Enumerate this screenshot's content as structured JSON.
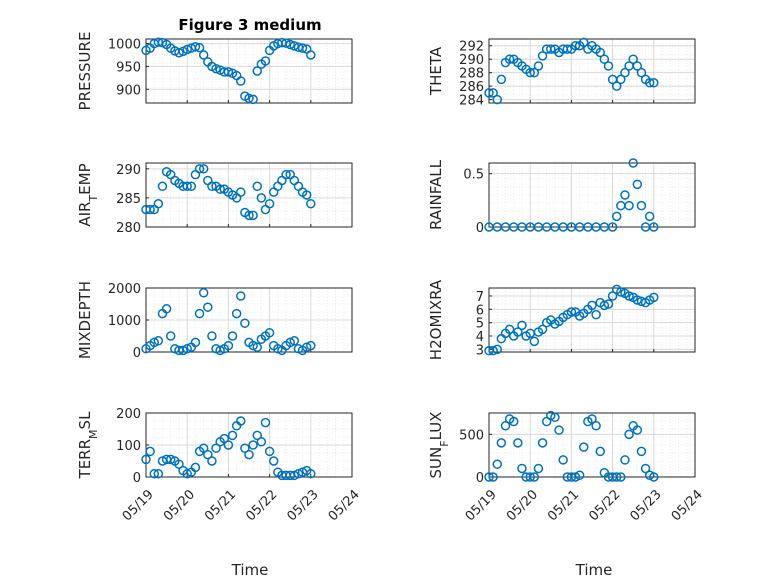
{
  "figure": {
    "title": "Figure 3 medium"
  },
  "colors": {
    "marker": "#0072BD",
    "axes": "#262626"
  },
  "chart_data": [
    {
      "type": "scatter",
      "ylabel": "PRESSURE",
      "title": "Figure 3 medium",
      "ylim": [
        870,
        1010
      ],
      "yticks": [
        900,
        950,
        1000
      ],
      "xlim": [
        0,
        5
      ],
      "xticks": [
        0,
        1,
        2,
        3,
        4,
        5
      ],
      "xticklabels": [
        "05/19",
        "05/20",
        "05/21",
        "05/22",
        "05/23",
        "05/24"
      ],
      "series": [
        {
          "x": [
            0,
            0.1,
            0.2,
            0.3,
            0.4,
            0.5,
            0.6,
            0.7,
            0.8,
            0.9,
            1.0,
            1.1,
            1.2,
            1.3,
            1.4,
            1.5,
            1.6,
            1.7,
            1.8,
            1.9,
            2.0,
            2.1,
            2.2,
            2.3,
            2.4,
            2.5,
            2.6,
            2.7,
            2.8,
            2.9,
            3.0,
            3.1,
            3.2,
            3.3,
            3.4,
            3.5,
            3.6,
            3.7,
            3.8,
            3.9,
            4.0
          ],
          "y": [
            985,
            990,
            1000,
            1003,
            1002,
            998,
            990,
            984,
            980,
            983,
            987,
            990,
            993,
            991,
            975,
            960,
            950,
            945,
            942,
            938,
            938,
            935,
            930,
            918,
            885,
            880,
            878,
            940,
            955,
            962,
            985,
            995,
            1000,
            1002,
            1001,
            998,
            995,
            992,
            990,
            988,
            975
          ]
        }
      ]
    },
    {
      "type": "scatter",
      "ylabel": "THETA",
      "ylim": [
        283.5,
        293
      ],
      "yticks": [
        284,
        286,
        288,
        290,
        292
      ],
      "xlim": [
        0,
        5
      ],
      "xticks": [
        0,
        1,
        2,
        3,
        4,
        5
      ],
      "xticklabels": [
        "05/19",
        "05/20",
        "05/21",
        "05/22",
        "05/23",
        "05/24"
      ],
      "series": [
        {
          "x": [
            0,
            0.1,
            0.2,
            0.3,
            0.4,
            0.5,
            0.6,
            0.7,
            0.8,
            0.9,
            1.0,
            1.1,
            1.2,
            1.3,
            1.4,
            1.5,
            1.6,
            1.7,
            1.8,
            1.9,
            2.0,
            2.1,
            2.2,
            2.3,
            2.4,
            2.5,
            2.6,
            2.7,
            2.8,
            2.9,
            3.0,
            3.1,
            3.2,
            3.3,
            3.4,
            3.5,
            3.6,
            3.7,
            3.8,
            3.9,
            4.0
          ],
          "y": [
            285,
            285,
            284,
            287,
            289.5,
            290,
            290,
            289.5,
            289,
            288.5,
            288,
            288,
            289,
            290.5,
            291.5,
            291.5,
            291.5,
            291,
            291.5,
            291.5,
            291.5,
            292,
            292,
            292.5,
            291.5,
            292,
            291.5,
            291,
            290,
            289,
            287,
            286,
            287,
            288,
            289,
            290,
            289,
            288,
            287,
            286.5,
            286.5
          ]
        }
      ]
    },
    {
      "type": "scatter",
      "ylabel": "AIR_TEMP",
      "ylim": [
        280,
        291
      ],
      "yticks": [
        280,
        285,
        290
      ],
      "xlim": [
        0,
        5
      ],
      "xticks": [
        0,
        1,
        2,
        3,
        4,
        5
      ],
      "xticklabels": [
        "05/19",
        "05/20",
        "05/21",
        "05/22",
        "05/23",
        "05/24"
      ],
      "series": [
        {
          "x": [
            0,
            0.1,
            0.2,
            0.3,
            0.4,
            0.5,
            0.6,
            0.7,
            0.8,
            0.9,
            1.0,
            1.1,
            1.2,
            1.3,
            1.4,
            1.5,
            1.6,
            1.7,
            1.8,
            1.9,
            2.0,
            2.1,
            2.2,
            2.3,
            2.4,
            2.5,
            2.6,
            2.7,
            2.8,
            2.9,
            3.0,
            3.1,
            3.2,
            3.3,
            3.4,
            3.5,
            3.6,
            3.7,
            3.8,
            3.9,
            4.0
          ],
          "y": [
            283,
            283,
            283,
            284,
            287,
            289.5,
            289,
            288,
            287.5,
            287,
            287,
            287,
            289,
            290,
            290,
            288,
            287,
            287,
            286.5,
            286.5,
            286,
            285.5,
            285,
            286,
            282.5,
            282,
            282,
            287,
            285,
            283,
            284,
            286,
            287,
            288,
            289,
            289,
            288,
            287,
            286,
            285.5,
            284
          ]
        }
      ]
    },
    {
      "type": "scatter",
      "ylabel": "RAINFALL",
      "ylim": [
        0,
        0.6
      ],
      "yticks": [
        0,
        0.5
      ],
      "xlim": [
        0,
        5
      ],
      "xticks": [
        0,
        1,
        2,
        3,
        4,
        5
      ],
      "xticklabels": [
        "05/19",
        "05/20",
        "05/21",
        "05/22",
        "05/23",
        "05/24"
      ],
      "series": [
        {
          "x": [
            0,
            0.2,
            0.4,
            0.6,
            0.8,
            1.0,
            1.2,
            1.4,
            1.6,
            1.8,
            2.0,
            2.2,
            2.4,
            2.6,
            2.8,
            3.0,
            3.1,
            3.2,
            3.3,
            3.4,
            3.5,
            3.6,
            3.7,
            3.8,
            3.9,
            4.0
          ],
          "y": [
            0,
            0,
            0,
            0,
            0,
            0,
            0,
            0,
            0,
            0,
            0,
            0,
            0,
            0,
            0,
            0,
            0.1,
            0.2,
            0.3,
            0.2,
            0.6,
            0.4,
            0.2,
            0,
            0.1,
            0
          ]
        }
      ]
    },
    {
      "type": "scatter",
      "ylabel": "MIXDEPTH",
      "ylim": [
        0,
        2000
      ],
      "yticks": [
        0,
        1000,
        2000
      ],
      "xlim": [
        0,
        5
      ],
      "xticks": [
        0,
        1,
        2,
        3,
        4,
        5
      ],
      "xticklabels": [
        "05/19",
        "05/20",
        "05/21",
        "05/22",
        "05/23",
        "05/24"
      ],
      "series": [
        {
          "x": [
            0,
            0.1,
            0.2,
            0.3,
            0.4,
            0.5,
            0.6,
            0.7,
            0.8,
            0.9,
            1.0,
            1.1,
            1.2,
            1.3,
            1.4,
            1.5,
            1.6,
            1.7,
            1.8,
            1.9,
            2.0,
            2.1,
            2.2,
            2.3,
            2.4,
            2.5,
            2.6,
            2.7,
            2.8,
            2.9,
            3.0,
            3.1,
            3.2,
            3.3,
            3.4,
            3.5,
            3.6,
            3.7,
            3.8,
            3.9,
            4.0
          ],
          "y": [
            100,
            200,
            300,
            350,
            1200,
            1350,
            500,
            100,
            50,
            50,
            100,
            150,
            300,
            1200,
            1850,
            1400,
            500,
            100,
            50,
            100,
            200,
            500,
            1200,
            1750,
            900,
            300,
            200,
            150,
            400,
            500,
            600,
            200,
            100,
            50,
            200,
            300,
            350,
            100,
            50,
            150,
            200
          ]
        }
      ]
    },
    {
      "type": "scatter",
      "ylabel": "H2OMIXRA",
      "ylim": [
        2.8,
        7.6
      ],
      "yticks": [
        3,
        4,
        5,
        6,
        7
      ],
      "xlim": [
        0,
        5
      ],
      "xticks": [
        0,
        1,
        2,
        3,
        4,
        5
      ],
      "xticklabels": [
        "05/19",
        "05/20",
        "05/21",
        "05/22",
        "05/23",
        "05/24"
      ],
      "series": [
        {
          "x": [
            0,
            0.1,
            0.2,
            0.3,
            0.4,
            0.5,
            0.6,
            0.7,
            0.8,
            0.9,
            1.0,
            1.1,
            1.2,
            1.3,
            1.4,
            1.5,
            1.6,
            1.7,
            1.8,
            1.9,
            2.0,
            2.1,
            2.2,
            2.3,
            2.4,
            2.5,
            2.6,
            2.7,
            2.8,
            2.9,
            3.0,
            3.1,
            3.2,
            3.3,
            3.4,
            3.5,
            3.6,
            3.7,
            3.8,
            3.9,
            4.0
          ],
          "y": [
            2.9,
            2.9,
            3.0,
            3.8,
            4.2,
            4.5,
            4.0,
            4.3,
            4.8,
            4.0,
            4.2,
            3.6,
            4.3,
            4.5,
            5.0,
            5.2,
            4.9,
            5.1,
            5.4,
            5.6,
            5.8,
            5.8,
            5.5,
            5.7,
            6.0,
            6.3,
            5.6,
            6.5,
            6.3,
            6.4,
            7.0,
            7.5,
            7.3,
            7.2,
            7.0,
            6.9,
            6.7,
            6.6,
            6.5,
            6.7,
            6.9
          ]
        }
      ]
    },
    {
      "type": "scatter",
      "ylabel": "TERR_MSL",
      "ylim": [
        0,
        200
      ],
      "yticks": [
        0,
        100,
        200
      ],
      "xlim": [
        0,
        5
      ],
      "xticks": [
        0,
        1,
        2,
        3,
        4,
        5
      ],
      "xticklabels": [
        "05/19",
        "05/20",
        "05/21",
        "05/22",
        "05/23",
        "05/24"
      ],
      "series": [
        {
          "x": [
            0,
            0.1,
            0.2,
            0.3,
            0.4,
            0.5,
            0.6,
            0.7,
            0.8,
            0.9,
            1.0,
            1.1,
            1.2,
            1.3,
            1.4,
            1.5,
            1.6,
            1.7,
            1.8,
            1.9,
            2.0,
            2.1,
            2.2,
            2.3,
            2.4,
            2.5,
            2.6,
            2.7,
            2.8,
            2.9,
            3.0,
            3.1,
            3.2,
            3.3,
            3.4,
            3.5,
            3.6,
            3.7,
            3.8,
            3.9,
            4.0
          ],
          "y": [
            55,
            80,
            10,
            10,
            50,
            55,
            55,
            50,
            40,
            20,
            10,
            15,
            30,
            80,
            90,
            70,
            50,
            90,
            110,
            120,
            100,
            130,
            160,
            175,
            90,
            70,
            100,
            130,
            110,
            170,
            80,
            50,
            15,
            5,
            5,
            5,
            5,
            10,
            15,
            20,
            10
          ]
        }
      ]
    },
    {
      "type": "scatter",
      "ylabel": "SUN_FLUX",
      "ylim": [
        0,
        750
      ],
      "yticks": [
        0,
        500
      ],
      "xlim": [
        0,
        5
      ],
      "xticks": [
        0,
        1,
        2,
        3,
        4,
        5
      ],
      "xticklabels": [
        "05/19",
        "05/20",
        "05/21",
        "05/22",
        "05/23",
        "05/24"
      ],
      "series": [
        {
          "x": [
            0,
            0.1,
            0.2,
            0.3,
            0.4,
            0.5,
            0.6,
            0.7,
            0.8,
            0.9,
            1.0,
            1.1,
            1.2,
            1.3,
            1.4,
            1.5,
            1.6,
            1.7,
            1.8,
            1.9,
            2.0,
            2.1,
            2.2,
            2.3,
            2.4,
            2.5,
            2.6,
            2.7,
            2.8,
            2.9,
            3.0,
            3.1,
            3.2,
            3.3,
            3.4,
            3.5,
            3.6,
            3.7,
            3.8,
            3.9,
            4.0
          ],
          "y": [
            0,
            0,
            150,
            400,
            600,
            680,
            650,
            400,
            100,
            0,
            0,
            0,
            100,
            400,
            650,
            720,
            700,
            550,
            200,
            0,
            0,
            0,
            20,
            350,
            650,
            680,
            600,
            300,
            50,
            0,
            0,
            0,
            0,
            200,
            500,
            600,
            550,
            300,
            100,
            20,
            0
          ]
        }
      ]
    }
  ],
  "xlabel_bottom": [
    "Time",
    "Time"
  ]
}
